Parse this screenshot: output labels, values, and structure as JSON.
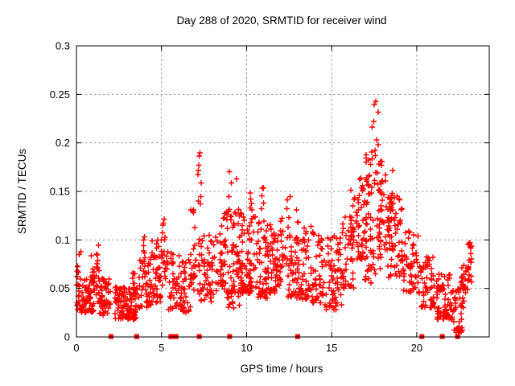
{
  "window": {
    "background": "#ffffff"
  },
  "chart_data": {
    "type": "scatter",
    "title": "Day 288 of 2020, SRMTID for receiver wind",
    "xlabel": "GPS time / hours",
    "ylabel": "SRMTID / TECUs",
    "xlim": [
      0,
      24.26
    ],
    "ylim": [
      0,
      0.3
    ],
    "xticks": {
      "values": [
        0,
        5,
        10,
        15,
        20
      ],
      "labels": [
        "0",
        "5",
        "10",
        "15",
        "20"
      ]
    },
    "yticks": {
      "values": [
        0,
        0.05,
        0.1,
        0.15,
        0.2,
        0.25,
        0.3
      ],
      "labels": [
        "0",
        "0.05",
        "0.1",
        "0.15",
        "0.2",
        "0.25",
        "0.3"
      ]
    },
    "grid": true,
    "grid_color": "#9b9b9b",
    "frame_color": "#000000",
    "legend": "none",
    "seed": 1337,
    "series": [
      {
        "name": "srmtid-plus-points",
        "marker": "plus",
        "color": "#ff0000",
        "marker_size": 7,
        "comment": "dense scatter summarized as clusters: [hour_start, hour_end, value_min, value_max, n_points, skew_power]",
        "clusters": [
          [
            0.0,
            0.3,
            0.028,
            0.092,
            26,
            1.6
          ],
          [
            0.25,
            1.1,
            0.025,
            0.068,
            60,
            1.4
          ],
          [
            0.85,
            1.05,
            0.055,
            0.088,
            10,
            1.0
          ],
          [
            1.1,
            1.35,
            0.035,
            0.096,
            18,
            1.2
          ],
          [
            1.35,
            2.0,
            0.022,
            0.06,
            55,
            1.3
          ],
          [
            2.25,
            3.55,
            0.018,
            0.052,
            110,
            1.2
          ],
          [
            3.3,
            3.6,
            0.045,
            0.068,
            12,
            1.0
          ],
          [
            3.65,
            4.4,
            0.03,
            0.085,
            45,
            1.3
          ],
          [
            3.85,
            4.05,
            0.07,
            0.105,
            8,
            1.0
          ],
          [
            4.4,
            5.0,
            0.035,
            0.1,
            45,
            1.2
          ],
          [
            5.0,
            5.35,
            0.05,
            0.124,
            22,
            1.1
          ],
          [
            5.35,
            6.25,
            0.028,
            0.09,
            50,
            1.4
          ],
          [
            6.25,
            6.75,
            0.025,
            0.08,
            30,
            1.3
          ],
          [
            6.7,
            7.3,
            0.04,
            0.132,
            30,
            1.1
          ],
          [
            7.15,
            7.35,
            0.135,
            0.19,
            9,
            0.9
          ],
          [
            7.3,
            8.3,
            0.035,
            0.105,
            55,
            1.3
          ],
          [
            8.3,
            8.95,
            0.04,
            0.13,
            45,
            1.2
          ],
          [
            8.95,
            9.15,
            0.12,
            0.175,
            7,
            1.0
          ],
          [
            9.2,
            9.45,
            0.09,
            0.165,
            10,
            1.1
          ],
          [
            8.9,
            9.6,
            0.03,
            0.09,
            35,
            1.2
          ],
          [
            9.5,
            10.6,
            0.045,
            0.135,
            90,
            1.4
          ],
          [
            10.2,
            10.45,
            0.12,
            0.152,
            6,
            1.0
          ],
          [
            10.6,
            11.3,
            0.04,
            0.12,
            60,
            1.3
          ],
          [
            10.85,
            11.0,
            0.125,
            0.158,
            5,
            1.0
          ],
          [
            11.3,
            12.3,
            0.045,
            0.125,
            70,
            1.3
          ],
          [
            12.35,
            12.6,
            0.1,
            0.15,
            8,
            1.0
          ],
          [
            12.3,
            13.2,
            0.04,
            0.1,
            50,
            1.2
          ],
          [
            12.85,
            13.05,
            0.095,
            0.136,
            6,
            1.0
          ],
          [
            13.2,
            14.6,
            0.035,
            0.115,
            90,
            1.4
          ],
          [
            14.6,
            15.6,
            0.028,
            0.105,
            65,
            1.4
          ],
          [
            15.6,
            16.3,
            0.05,
            0.135,
            45,
            1.2
          ],
          [
            16.1,
            16.45,
            0.1,
            0.152,
            12,
            1.0
          ],
          [
            16.45,
            17.1,
            0.08,
            0.165,
            45,
            1.1
          ],
          [
            17.0,
            17.35,
            0.13,
            0.195,
            16,
            1.0
          ],
          [
            17.3,
            17.75,
            0.145,
            0.253,
            18,
            1.25
          ],
          [
            16.9,
            17.9,
            0.055,
            0.135,
            40,
            1.2
          ],
          [
            17.75,
            18.6,
            0.09,
            0.185,
            55,
            1.3
          ],
          [
            18.3,
            19.2,
            0.06,
            0.145,
            55,
            1.3
          ],
          [
            19.2,
            20.2,
            0.045,
            0.11,
            55,
            1.3
          ],
          [
            20.2,
            21.1,
            0.03,
            0.085,
            50,
            1.3
          ],
          [
            21.1,
            22.1,
            0.018,
            0.065,
            70,
            1.3
          ],
          [
            22.1,
            22.7,
            0.004,
            0.05,
            35,
            1.2
          ],
          [
            22.6,
            23.0,
            0.03,
            0.08,
            25,
            1.0
          ],
          [
            23.0,
            23.25,
            0.055,
            0.098,
            22,
            0.9
          ]
        ]
      },
      {
        "name": "baseline-flag-squares",
        "marker": "filled-square",
        "color": "#ff0000",
        "marker_size": 6,
        "points": [
          [
            2.03,
            0
          ],
          [
            3.54,
            0
          ],
          [
            5.55,
            0
          ],
          [
            5.7,
            0
          ],
          [
            5.85,
            0
          ],
          [
            7.22,
            0
          ],
          [
            9.0,
            0
          ],
          [
            13.0,
            0
          ],
          [
            20.3,
            0
          ],
          [
            21.5,
            0
          ],
          [
            22.4,
            0
          ]
        ]
      }
    ]
  }
}
